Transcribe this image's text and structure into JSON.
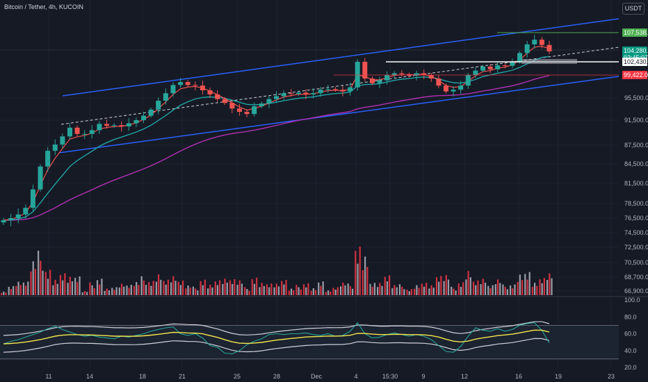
{
  "header": {
    "symbol_title": "Bitcoin / Tether, 4h, KUCOIN",
    "currency": "USDT"
  },
  "colors": {
    "background": "#161a25",
    "up": "#26a69a",
    "down": "#ef5350",
    "channel": "#2962ff",
    "ema_fast": "#ef5350",
    "ema_mid": "#1fa5a5",
    "ema_slow": "#b42fb4",
    "vol_up": "#b2b5be",
    "vol_down": "#f23645",
    "rsi_line": "#26a69a",
    "rsi_ma": "#f5e84c",
    "bb": "#d1d4dc",
    "tag_green": "#4caf50",
    "tag_red": "#f23645",
    "tag_white": "#ffffff",
    "tag_teal": "#089981"
  },
  "chart_data": [
    {
      "type": "line",
      "panel": "price",
      "y_ticks": [
        "95,500.0",
        "91,500.0",
        "87,500.0",
        "84,500.0",
        "81,500.0",
        "78,500.0",
        "76,500.0",
        "74,500.0",
        "72,500.0",
        "70,500.0",
        "68,700.0",
        "66,900.0"
      ],
      "x_ticks": [
        "11",
        "14",
        "18",
        "21",
        "25",
        "28",
        "Dec",
        "4",
        "15:30",
        "9",
        "12",
        "16",
        "19",
        "23"
      ],
      "price_tags": [
        {
          "label": "107,538.2",
          "kind": "resistance"
        },
        {
          "label": "104,280.1",
          "kind": "last"
        },
        {
          "label": "02:45:07",
          "kind": "countdown"
        },
        {
          "label": "102,430.0",
          "kind": "support"
        },
        {
          "label": "99,422.0",
          "kind": "support-low"
        }
      ],
      "close": [
        76.2,
        76.5,
        77.0,
        77.9,
        80.6,
        84.1,
        86.6,
        87.6,
        88.9,
        90.3,
        89.3,
        89.3,
        89.9,
        90.9,
        90.6,
        90.7,
        90.5,
        91.0,
        91.5,
        92.3,
        93.4,
        95.0,
        96.3,
        97.7,
        98.2,
        97.7,
        97.6,
        96.8,
        96.1,
        95.3,
        94.6,
        93.6,
        93.0,
        92.6,
        94.0,
        94.5,
        95.3,
        95.8,
        96.3,
        96.2,
        96.4,
        96.1,
        96.3,
        96.9,
        97.0,
        96.9,
        96.6,
        97.3,
        102.4,
        98.8,
        98.0,
        98.5,
        99.4,
        99.8,
        99.6,
        99.3,
        99.8,
        99.4,
        98.8,
        97.6,
        96.6,
        96.9,
        97.6,
        99.4,
        100.4,
        101.3,
        100.7,
        101.6,
        101.5,
        102.3,
        104.0,
        105.5,
        106.3,
        105.4,
        104.3
      ]
    },
    {
      "type": "bar",
      "panel": "volume"
    },
    {
      "type": "line",
      "panel": "rsi",
      "y_ticks": [
        "100.0",
        "80.0",
        "60.0",
        "40.0",
        "20.0"
      ],
      "ylim": [
        20,
        100
      ],
      "levels": [
        70,
        30
      ],
      "rsi": [
        48,
        51,
        53,
        56,
        59,
        62,
        66,
        69,
        65,
        62,
        59,
        57,
        58,
        56,
        55,
        54,
        57,
        56,
        58,
        60,
        63,
        65,
        67,
        68,
        60,
        58,
        60,
        55,
        46,
        44,
        37,
        36,
        40,
        47,
        51,
        54,
        59,
        60,
        59,
        60,
        60,
        61,
        59,
        58,
        60,
        57,
        58,
        63,
        73,
        60,
        55,
        56,
        59,
        61,
        59,
        57,
        59,
        57,
        53,
        46,
        39,
        38,
        45,
        57,
        67,
        64,
        63,
        66,
        63,
        65,
        70,
        72,
        73,
        64,
        49
      ]
    }
  ]
}
